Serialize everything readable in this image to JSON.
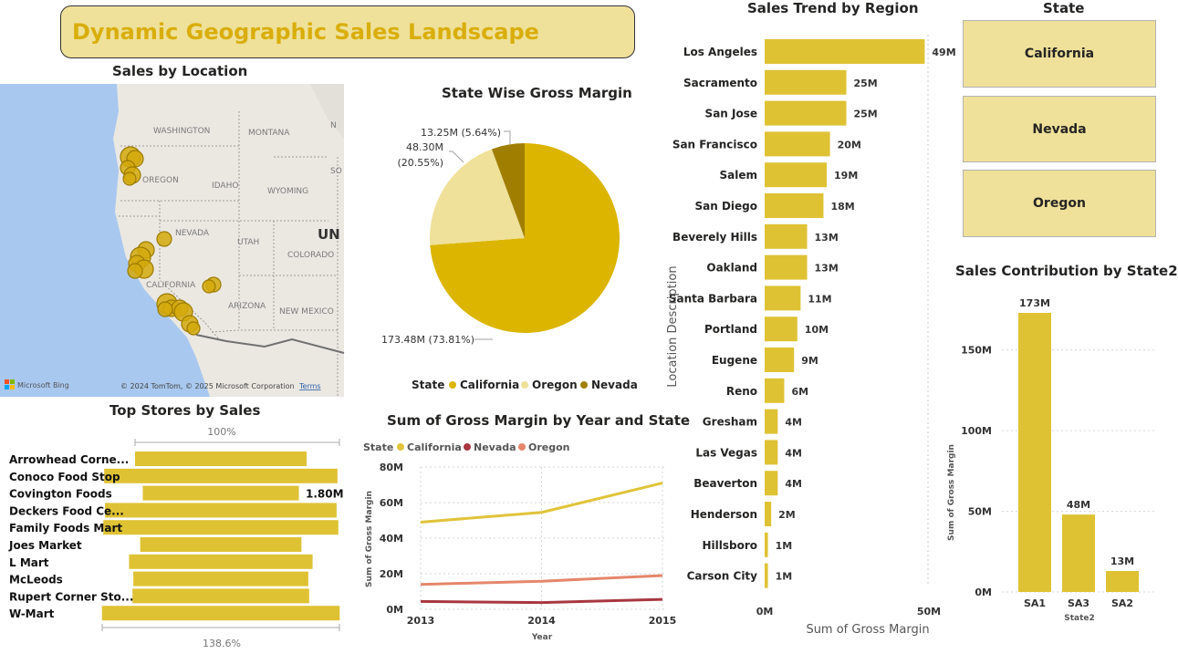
{
  "dashboard_title": "Dynamic Geographic Sales Landscape",
  "colors": {
    "accent": "#dfc234",
    "banner": "#efe19a",
    "california": "#dbb500",
    "oregon": "#efe19a",
    "nevada": "#a07f00",
    "line_california": "#e1c33a",
    "line_nevada": "#a8373f",
    "line_oregon": "#e5866b",
    "map_water": "#a8c8ef"
  },
  "map": {
    "title": "Sales by Location",
    "labels": [
      "WASHINGTON",
      "MONTANA",
      "OREGON",
      "IDAHO",
      "WYOMING",
      "NEVADA",
      "UTAH",
      "COLORADO",
      "CALIFORNIA",
      "ARIZONA",
      "NEW MEXICO",
      "UN",
      "SO",
      "N"
    ],
    "brand": "Microsoft Bing",
    "copyright": "© 2024 TomTom, © 2025 Microsoft Corporation",
    "terms": "Terms"
  },
  "pie": {
    "title": "State Wise Gross Margin",
    "legend_title": "State",
    "slices": [
      {
        "name": "California",
        "value": 173.48,
        "label": "173.48M (73.81%)",
        "color": "#dbb500"
      },
      {
        "name": "Oregon",
        "value": 48.3,
        "label_line1": "48.30M",
        "label_line2": "(20.55%)",
        "color": "#efe19a"
      },
      {
        "name": "Nevada",
        "value": 13.25,
        "label": "13.25M (5.64%)",
        "color": "#a07f00"
      }
    ]
  },
  "region_chart": {
    "title": "Sales Trend by Region",
    "ylabel": "Location Description",
    "xlabel": "Sum of Gross Margin",
    "x_ticks": [
      "0M",
      "50M"
    ],
    "xlim": [
      0,
      50
    ]
  },
  "state_slicer": {
    "title": "State",
    "options": [
      "California",
      "Nevada",
      "Oregon"
    ]
  },
  "contrib_chart": {
    "title": "Sales Contribution by State2",
    "ylabel": "Sum of Gross Margin",
    "xlabel": "State2",
    "y_ticks": [
      "0M",
      "50M",
      "100M",
      "150M"
    ],
    "ylim": [
      0,
      173
    ]
  },
  "top_stores": {
    "title": "Top Stores by Sales",
    "top_scale": "100%",
    "bottom_scale": "138.6%",
    "highlight_label": "1.80M",
    "stores": [
      {
        "name": "Arrowhead Corne...",
        "share": 1.0
      },
      {
        "name": "Conoco Food Stop",
        "share": 1.36
      },
      {
        "name": "Covington Foods",
        "share": 0.91
      },
      {
        "name": "Deckers Food Ce...",
        "share": 1.35
      },
      {
        "name": "Family Foods Mart",
        "share": 1.37
      },
      {
        "name": "Joes Market",
        "share": 0.94
      },
      {
        "name": "L Mart",
        "share": 1.07
      },
      {
        "name": "McLeods",
        "share": 1.02
      },
      {
        "name": "Rupert Corner Sto...",
        "share": 1.03
      },
      {
        "name": "W-Mart",
        "share": 1.386
      }
    ]
  },
  "line_chart": {
    "title": "Sum of Gross Margin by Year and State",
    "legend_title": "State",
    "xlabel": "Year",
    "ylabel": "Sum of Gross Margin",
    "y_ticks": [
      "0M",
      "20M",
      "40M",
      "60M",
      "80M"
    ],
    "x_ticks": [
      "2013",
      "2014",
      "2015"
    ]
  },
  "chart_data": [
    {
      "type": "pie",
      "title": "State Wise Gross Margin",
      "categories": [
        "California",
        "Oregon",
        "Nevada"
      ],
      "values": [
        173.48,
        48.3,
        13.25
      ],
      "percent": [
        73.81,
        20.55,
        5.64
      ],
      "unit": "M",
      "legend": "bottom"
    },
    {
      "type": "bar",
      "orientation": "horizontal",
      "title": "Sales Trend by Region",
      "xlabel": "Sum of Gross Margin",
      "ylabel": "Location Description",
      "categories": [
        "Los Angeles",
        "Sacramento",
        "San Jose",
        "San Francisco",
        "Salem",
        "San Diego",
        "Beverely Hills",
        "Oakland",
        "Santa Barbara",
        "Portland",
        "Eugene",
        "Reno",
        "Gresham",
        "Las Vegas",
        "Beaverton",
        "Henderson",
        "Hillsboro",
        "Carson City"
      ],
      "values": [
        49,
        25,
        25,
        20,
        19,
        18,
        13,
        13,
        11,
        10,
        9,
        6,
        4,
        4,
        4,
        2,
        1,
        1
      ],
      "value_labels": [
        "49M",
        "25M",
        "25M",
        "20M",
        "19M",
        "18M",
        "13M",
        "13M",
        "11M",
        "10M",
        "9M",
        "6M",
        "4M",
        "4M",
        "4M",
        "2M",
        "1M",
        "1M"
      ],
      "xlim": [
        0,
        50
      ]
    },
    {
      "type": "bar",
      "title": "Sales Contribution by State2",
      "xlabel": "State2",
      "ylabel": "Sum of Gross Margin",
      "categories": [
        "SA1",
        "SA3",
        "SA2"
      ],
      "values": [
        173,
        48,
        13
      ],
      "value_labels": [
        "173M",
        "48M",
        "13M"
      ],
      "ylim": [
        0,
        173
      ]
    },
    {
      "type": "line",
      "title": "Sum of Gross Margin by Year and State",
      "xlabel": "Year",
      "ylabel": "Sum of Gross Margin",
      "x": [
        2013,
        2014,
        2015
      ],
      "series": [
        {
          "name": "California",
          "values": [
            49,
            54.5,
            71
          ]
        },
        {
          "name": "Nevada",
          "values": [
            4.4,
            3.8,
            5.6
          ]
        },
        {
          "name": "Oregon",
          "values": [
            14,
            15.8,
            19
          ]
        }
      ],
      "ylim": [
        0,
        80
      ]
    }
  ]
}
